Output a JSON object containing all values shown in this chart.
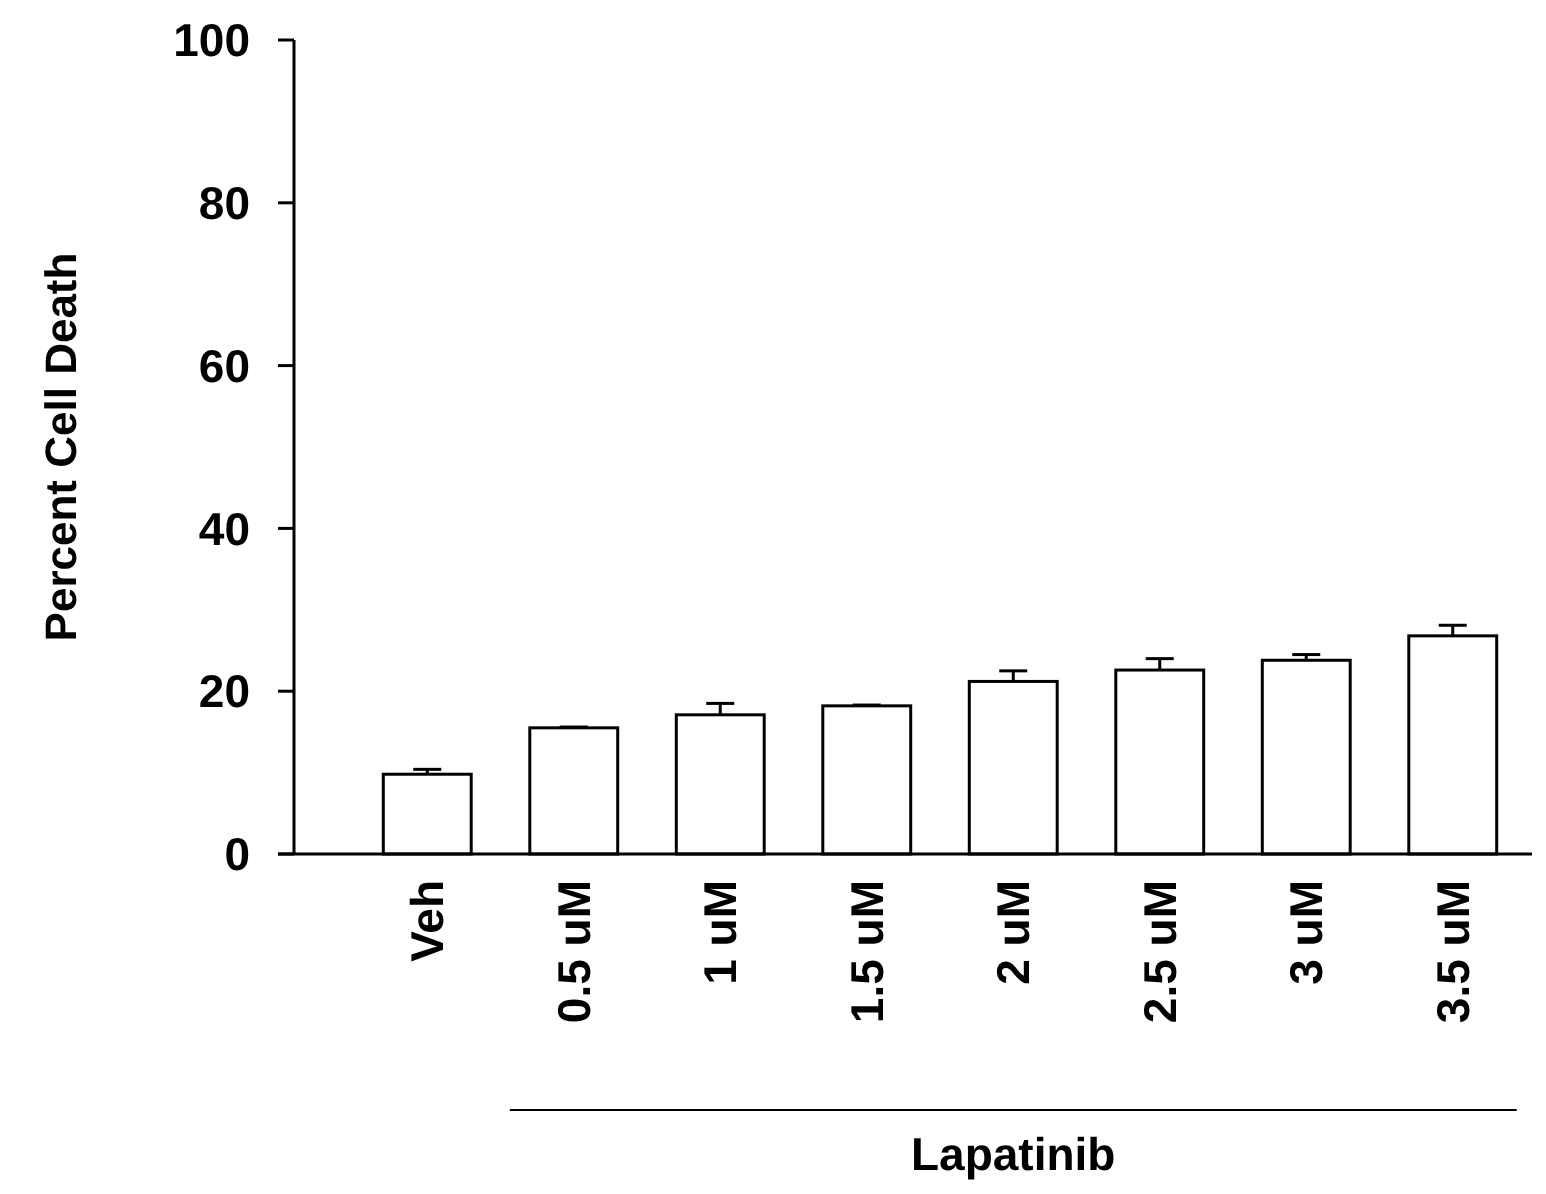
{
  "chart_data": {
    "type": "bar",
    "ylabel": "Percent Cell Death",
    "categories": [
      "Veh",
      "0.5 uM",
      "1 uM",
      "1.5 uM",
      "2 uM",
      "2.5 uM",
      "3 uM",
      "3.5 uM"
    ],
    "values": [
      9.8,
      15.5,
      17.1,
      18.2,
      21.2,
      22.6,
      23.8,
      26.8
    ],
    "errors": [
      [
        9.8,
        10.4
      ],
      [
        15.5,
        15.6
      ],
      [
        17.1,
        18.5
      ],
      [
        18.2,
        18.3
      ],
      [
        21.2,
        22.5
      ],
      [
        22.6,
        24.0
      ],
      [
        23.8,
        24.5
      ],
      [
        26.8,
        28.1
      ]
    ],
    "color": "#ffffff",
    "ylim": [
      0,
      100
    ],
    "yticks": [
      0,
      20,
      40,
      60,
      80,
      100
    ],
    "annotations": [
      "Lapatinib"
    ]
  }
}
